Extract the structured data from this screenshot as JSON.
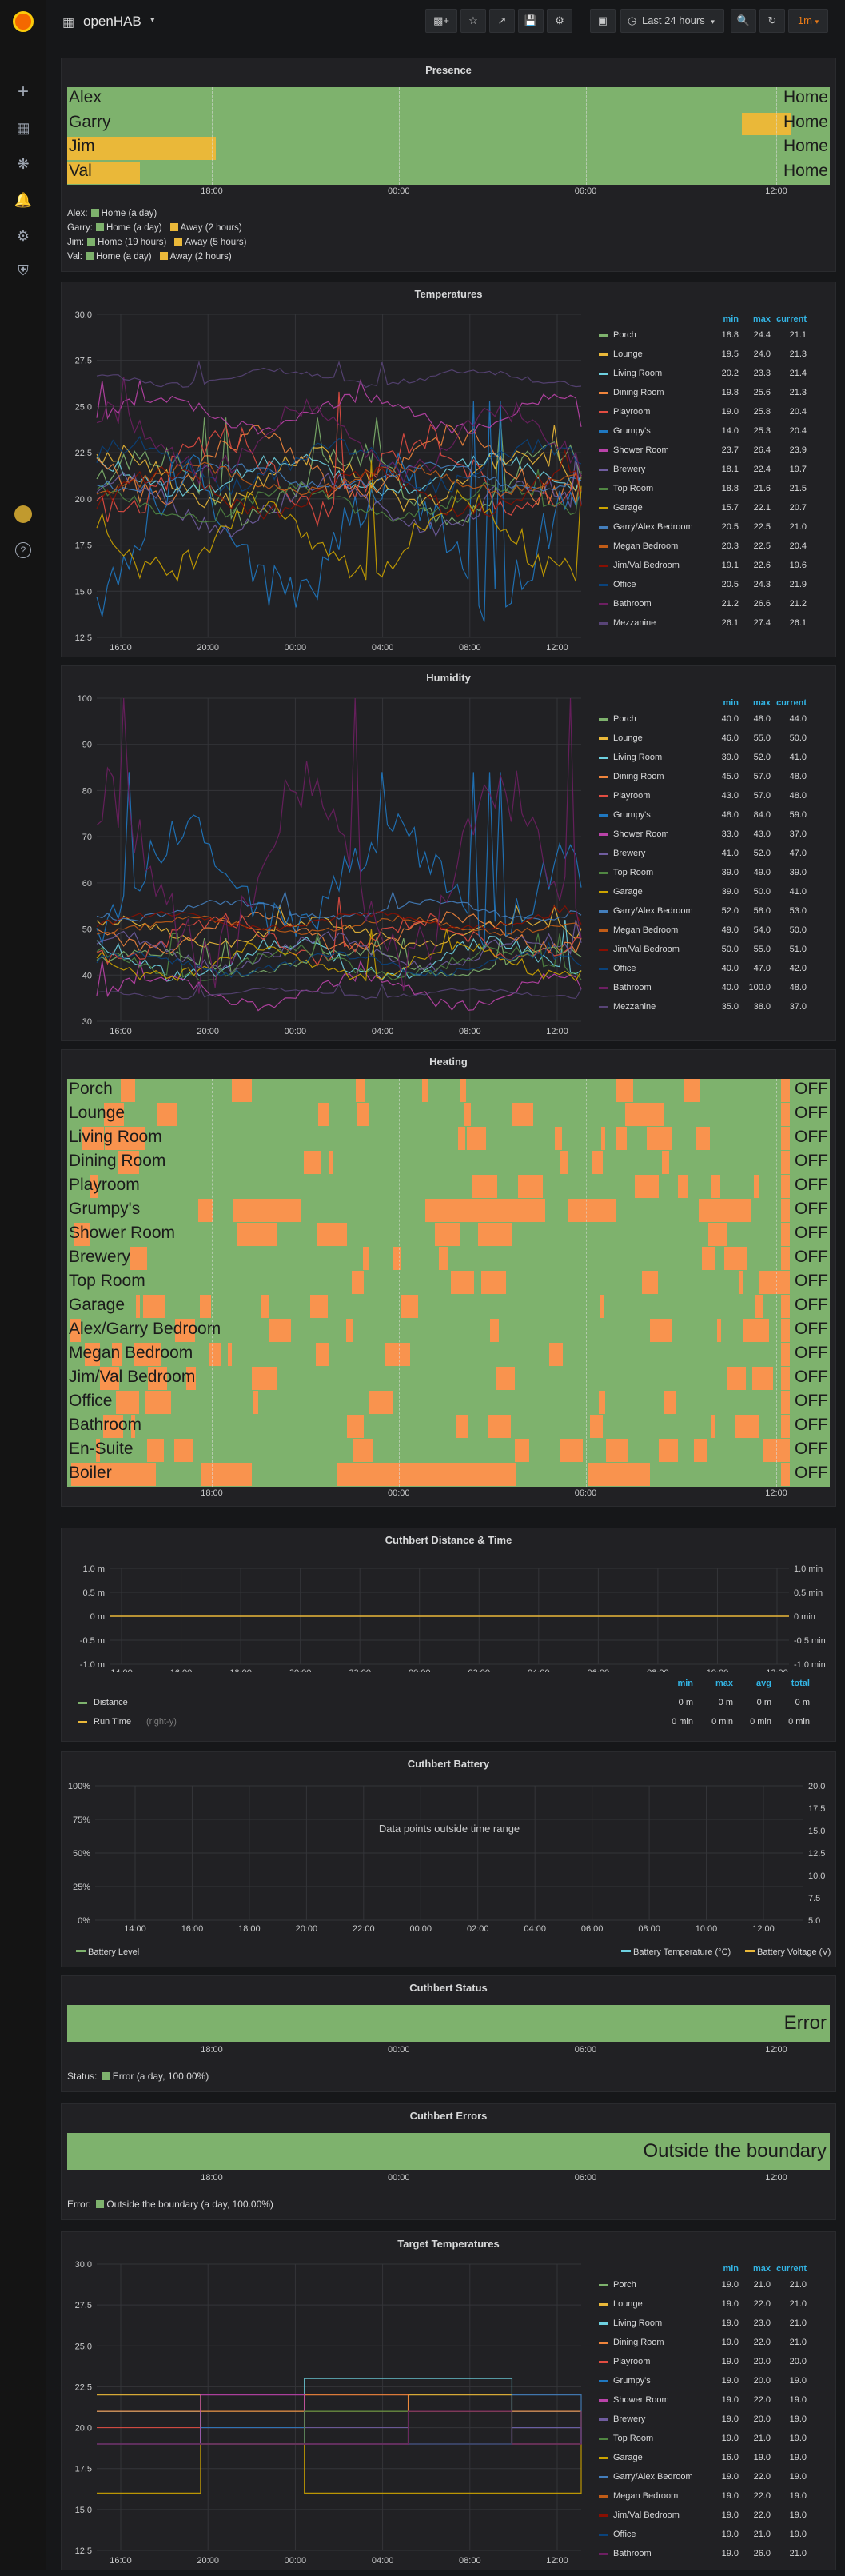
{
  "app": {
    "title": "openHAB",
    "time_range": "Last 24 hours",
    "refresh": "1m"
  },
  "icons": {
    "logo": "grafana-logo-icon",
    "menu": [
      "plus-icon",
      "dashboards-icon",
      "explore-icon",
      "alerting-icon",
      "settings-icon",
      "shield-icon"
    ],
    "toolbar": [
      "add-panel-icon",
      "star-icon",
      "share-icon",
      "save-icon",
      "settings-icon",
      "tv-icon",
      "clock-icon",
      "zoom-out-icon",
      "refresh-icon"
    ]
  },
  "colors": {
    "green": "#7eb26d",
    "yellow": "#eab839",
    "orange": "#f9934e",
    "blue": "#33b5e5",
    "red": "#e24d42"
  },
  "time_axis_state": [
    "18:00",
    "00:00",
    "06:00",
    "12:00"
  ],
  "presence": {
    "title": "Presence",
    "rows": [
      {
        "name": "Alex",
        "value": "Home",
        "segments": []
      },
      {
        "name": "Garry",
        "value": "Home",
        "segments": [
          [
            0.885,
            0.95
          ]
        ]
      },
      {
        "name": "Jim",
        "value": "Home",
        "segments": [
          [
            0.0,
            0.195
          ]
        ]
      },
      {
        "name": "Val",
        "value": "Home",
        "segments": [
          [
            0.0,
            0.095
          ]
        ]
      }
    ],
    "legend": [
      {
        "label": "Alex:",
        "items": [
          {
            "c": "green",
            "t": "Home (a day)"
          }
        ]
      },
      {
        "label": "Garry:",
        "items": [
          {
            "c": "green",
            "t": "Home (a day)"
          },
          {
            "c": "yellow",
            "t": "Away (2 hours)"
          }
        ]
      },
      {
        "label": "Jim:",
        "items": [
          {
            "c": "green",
            "t": "Home (19 hours)"
          },
          {
            "c": "yellow",
            "t": "Away (5 hours)"
          }
        ]
      },
      {
        "label": "Val:",
        "items": [
          {
            "c": "green",
            "t": "Home (a day)"
          },
          {
            "c": "yellow",
            "t": "Away (2 hours)"
          }
        ]
      }
    ]
  },
  "temperatures": {
    "title": "Temperatures",
    "cols": [
      "min",
      "max",
      "current"
    ],
    "y_ticks": [
      "30.0",
      "27.5",
      "25.0",
      "22.5",
      "20.0",
      "17.5",
      "15.0",
      "12.5"
    ],
    "x_ticks": [
      "16:00",
      "20:00",
      "00:00",
      "04:00",
      "08:00",
      "12:00"
    ],
    "rows": [
      {
        "name": "Porch",
        "color": "#7eb26d",
        "min": "18.8",
        "max": "24.4",
        "current": "21.1"
      },
      {
        "name": "Lounge",
        "color": "#eab839",
        "min": "19.5",
        "max": "24.0",
        "current": "21.3"
      },
      {
        "name": "Living Room",
        "color": "#6ed0e0",
        "min": "20.2",
        "max": "23.3",
        "current": "21.4"
      },
      {
        "name": "Dining Room",
        "color": "#ef843c",
        "min": "19.8",
        "max": "25.6",
        "current": "21.3"
      },
      {
        "name": "Playroom",
        "color": "#e24d42",
        "min": "19.0",
        "max": "25.8",
        "current": "20.4"
      },
      {
        "name": "Grumpy's",
        "color": "#1f78c1",
        "min": "14.0",
        "max": "25.3",
        "current": "20.4"
      },
      {
        "name": "Shower Room",
        "color": "#ba43a9",
        "min": "23.7",
        "max": "26.4",
        "current": "23.9"
      },
      {
        "name": "Brewery",
        "color": "#705da0",
        "min": "18.1",
        "max": "22.4",
        "current": "19.7"
      },
      {
        "name": "Top Room",
        "color": "#508642",
        "min": "18.8",
        "max": "21.6",
        "current": "21.5"
      },
      {
        "name": "Garage",
        "color": "#cca300",
        "min": "15.7",
        "max": "22.1",
        "current": "20.7"
      },
      {
        "name": "Garry/Alex Bedroom",
        "color": "#447ebc",
        "min": "20.5",
        "max": "22.5",
        "current": "21.0"
      },
      {
        "name": "Megan Bedroom",
        "color": "#c15c17",
        "min": "20.3",
        "max": "22.5",
        "current": "20.4"
      },
      {
        "name": "Jim/Val Bedroom",
        "color": "#890f02",
        "min": "19.1",
        "max": "22.6",
        "current": "19.6"
      },
      {
        "name": "Office",
        "color": "#0a437c",
        "min": "20.5",
        "max": "24.3",
        "current": "21.9"
      },
      {
        "name": "Bathroom",
        "color": "#6d1f62",
        "min": "21.2",
        "max": "26.6",
        "current": "21.2"
      },
      {
        "name": "Mezzanine",
        "color": "#584477",
        "min": "26.1",
        "max": "27.4",
        "current": "26.1"
      }
    ]
  },
  "humidity": {
    "title": "Humidity",
    "cols": [
      "min",
      "max",
      "current"
    ],
    "y_ticks": [
      "100",
      "90",
      "80",
      "70",
      "60",
      "50",
      "40",
      "30"
    ],
    "x_ticks": [
      "16:00",
      "20:00",
      "00:00",
      "04:00",
      "08:00",
      "12:00"
    ],
    "rows": [
      {
        "name": "Porch",
        "color": "#7eb26d",
        "min": "40.0",
        "max": "48.0",
        "current": "44.0"
      },
      {
        "name": "Lounge",
        "color": "#eab839",
        "min": "46.0",
        "max": "55.0",
        "current": "50.0"
      },
      {
        "name": "Living Room",
        "color": "#6ed0e0",
        "min": "39.0",
        "max": "52.0",
        "current": "41.0"
      },
      {
        "name": "Dining Room",
        "color": "#ef843c",
        "min": "45.0",
        "max": "57.0",
        "current": "48.0"
      },
      {
        "name": "Playroom",
        "color": "#e24d42",
        "min": "43.0",
        "max": "57.0",
        "current": "48.0"
      },
      {
        "name": "Grumpy's",
        "color": "#1f78c1",
        "min": "48.0",
        "max": "84.0",
        "current": "59.0"
      },
      {
        "name": "Shower Room",
        "color": "#ba43a9",
        "min": "33.0",
        "max": "43.0",
        "current": "37.0"
      },
      {
        "name": "Brewery",
        "color": "#705da0",
        "min": "41.0",
        "max": "52.0",
        "current": "47.0"
      },
      {
        "name": "Top Room",
        "color": "#508642",
        "min": "39.0",
        "max": "49.0",
        "current": "39.0"
      },
      {
        "name": "Garage",
        "color": "#cca300",
        "min": "39.0",
        "max": "50.0",
        "current": "41.0"
      },
      {
        "name": "Garry/Alex Bedroom",
        "color": "#447ebc",
        "min": "52.0",
        "max": "58.0",
        "current": "53.0"
      },
      {
        "name": "Megan Bedroom",
        "color": "#c15c17",
        "min": "49.0",
        "max": "54.0",
        "current": "50.0"
      },
      {
        "name": "Jim/Val Bedroom",
        "color": "#890f02",
        "min": "50.0",
        "max": "55.0",
        "current": "51.0"
      },
      {
        "name": "Office",
        "color": "#0a437c",
        "min": "40.0",
        "max": "47.0",
        "current": "42.0"
      },
      {
        "name": "Bathroom",
        "color": "#6d1f62",
        "min": "40.0",
        "max": "100.0",
        "current": "48.0"
      },
      {
        "name": "Mezzanine",
        "color": "#584477",
        "min": "35.0",
        "max": "38.0",
        "current": "37.0"
      }
    ]
  },
  "heating": {
    "title": "Heating",
    "rows": [
      {
        "name": "Porch",
        "value": "OFF"
      },
      {
        "name": "Lounge",
        "value": "OFF"
      },
      {
        "name": "Living Room",
        "value": "OFF"
      },
      {
        "name": "Dining Room",
        "value": "OFF"
      },
      {
        "name": "Playroom",
        "value": "OFF"
      },
      {
        "name": "Grumpy's",
        "value": "OFF"
      },
      {
        "name": "Shower Room",
        "value": "OFF"
      },
      {
        "name": "Brewery",
        "value": "OFF"
      },
      {
        "name": "Top Room",
        "value": "OFF"
      },
      {
        "name": "Garage",
        "value": "OFF"
      },
      {
        "name": "Alex/Garry Bedroom",
        "value": "OFF"
      },
      {
        "name": "Megan Bedroom",
        "value": "OFF"
      },
      {
        "name": "Jim/Val Bedroom",
        "value": "OFF"
      },
      {
        "name": "Office",
        "value": "OFF"
      },
      {
        "name": "Bathroom",
        "value": "OFF"
      },
      {
        "name": "En-Suite",
        "value": "OFF"
      },
      {
        "name": "Boiler",
        "value": "OFF"
      }
    ]
  },
  "cuthbert_distance": {
    "title": "Cuthbert Distance & Time",
    "y_left": [
      "1.0 m",
      "0.5 m",
      "0 m",
      "-0.5 m",
      "-1.0 m"
    ],
    "y_right": [
      "1.0 min",
      "0.5 min",
      "0 min",
      "-0.5 min",
      "-1.0 min"
    ],
    "x_ticks": [
      "14:00",
      "16:00",
      "18:00",
      "20:00",
      "22:00",
      "00:00",
      "02:00",
      "04:00",
      "06:00",
      "08:00",
      "10:00",
      "12:00"
    ],
    "cols": [
      "min",
      "max",
      "avg",
      "total"
    ],
    "rows": [
      {
        "name": "Distance",
        "note": "",
        "color": "#7eb26d",
        "min": "0 m",
        "max": "0 m",
        "avg": "0 m",
        "total": "0 m"
      },
      {
        "name": "Run Time",
        "note": "(right-y)",
        "color": "#eab839",
        "min": "0 min",
        "max": "0 min",
        "avg": "0 min",
        "total": "0 min"
      }
    ]
  },
  "cuthbert_battery": {
    "title": "Cuthbert Battery",
    "message": "Data points outside time range",
    "y_left": [
      "100%",
      "75%",
      "50%",
      "25%",
      "0%"
    ],
    "y_right": [
      "20.0",
      "17.5",
      "15.0",
      "12.5",
      "10.0",
      "7.5",
      "5.0"
    ],
    "x_ticks": [
      "14:00",
      "16:00",
      "18:00",
      "20:00",
      "22:00",
      "00:00",
      "02:00",
      "04:00",
      "06:00",
      "08:00",
      "10:00",
      "12:00"
    ],
    "legend": [
      {
        "name": "Battery Level",
        "color": "#7eb26d"
      },
      {
        "name": "Battery Temperature (°C)",
        "color": "#6ed0e0"
      },
      {
        "name": "Battery Voltage (V)",
        "color": "#eab839"
      }
    ]
  },
  "cuthbert_status": {
    "title": "Cuthbert Status",
    "value": "Error",
    "legend_label": "Status:",
    "legend_item": "Error (a day, 100.00%)"
  },
  "cuthbert_errors": {
    "title": "Cuthbert Errors",
    "value": "Outside the boundary",
    "legend_label": "Error:",
    "legend_item": "Outside the boundary (a day, 100.00%)"
  },
  "target_temperatures": {
    "title": "Target Temperatures",
    "cols": [
      "min",
      "max",
      "current"
    ],
    "y_ticks": [
      "30.0",
      "27.5",
      "25.0",
      "22.5",
      "20.0",
      "17.5",
      "15.0",
      "12.5"
    ],
    "x_ticks": [
      "16:00",
      "20:00",
      "00:00",
      "04:00",
      "08:00",
      "12:00"
    ],
    "rows": [
      {
        "name": "Porch",
        "color": "#7eb26d",
        "min": "19.0",
        "max": "21.0",
        "current": "21.0"
      },
      {
        "name": "Lounge",
        "color": "#eab839",
        "min": "19.0",
        "max": "22.0",
        "current": "21.0"
      },
      {
        "name": "Living Room",
        "color": "#6ed0e0",
        "min": "19.0",
        "max": "23.0",
        "current": "21.0"
      },
      {
        "name": "Dining Room",
        "color": "#ef843c",
        "min": "19.0",
        "max": "22.0",
        "current": "21.0"
      },
      {
        "name": "Playroom",
        "color": "#e24d42",
        "min": "19.0",
        "max": "20.0",
        "current": "20.0"
      },
      {
        "name": "Grumpy's",
        "color": "#1f78c1",
        "min": "19.0",
        "max": "20.0",
        "current": "19.0"
      },
      {
        "name": "Shower Room",
        "color": "#ba43a9",
        "min": "19.0",
        "max": "22.0",
        "current": "19.0"
      },
      {
        "name": "Brewery",
        "color": "#705da0",
        "min": "19.0",
        "max": "20.0",
        "current": "19.0"
      },
      {
        "name": "Top Room",
        "color": "#508642",
        "min": "19.0",
        "max": "21.0",
        "current": "19.0"
      },
      {
        "name": "Garage",
        "color": "#cca300",
        "min": "16.0",
        "max": "19.0",
        "current": "19.0"
      },
      {
        "name": "Garry/Alex Bedroom",
        "color": "#447ebc",
        "min": "19.0",
        "max": "22.0",
        "current": "19.0"
      },
      {
        "name": "Megan Bedroom",
        "color": "#c15c17",
        "min": "19.0",
        "max": "22.0",
        "current": "19.0"
      },
      {
        "name": "Jim/Val Bedroom",
        "color": "#890f02",
        "min": "19.0",
        "max": "22.0",
        "current": "19.0"
      },
      {
        "name": "Office",
        "color": "#0a437c",
        "min": "19.0",
        "max": "21.0",
        "current": "19.0"
      },
      {
        "name": "Bathroom",
        "color": "#6d1f62",
        "min": "19.0",
        "max": "26.0",
        "current": "21.0"
      }
    ]
  }
}
